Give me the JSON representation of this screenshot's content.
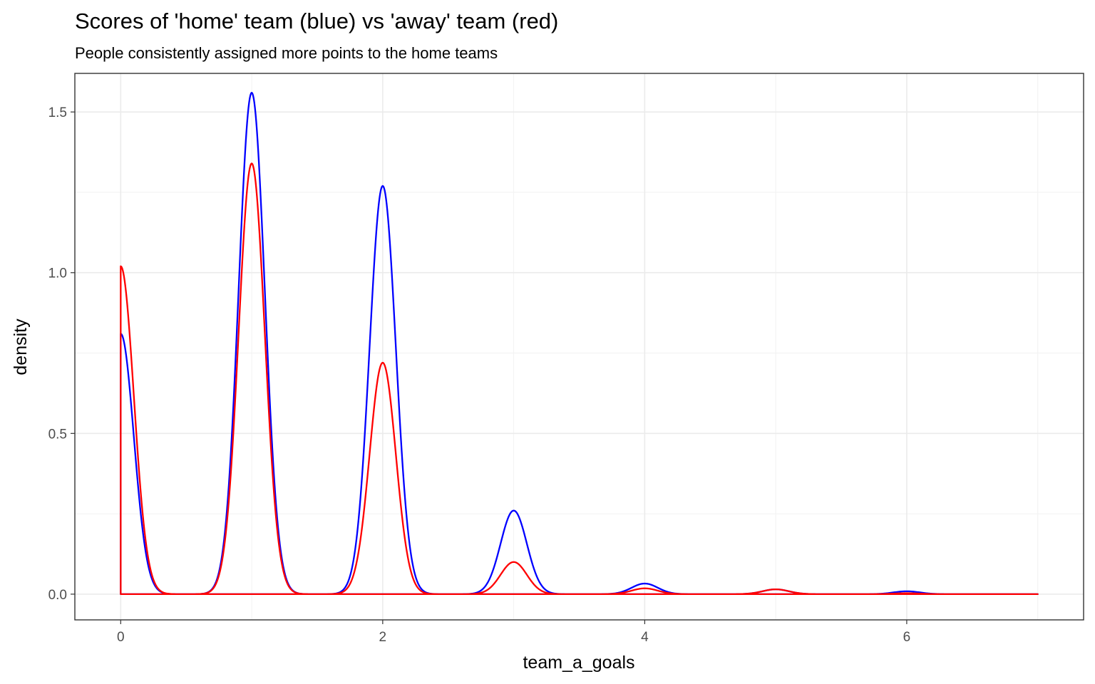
{
  "chart_data": {
    "type": "line",
    "title": "Scores of 'home' team (blue) vs 'away' team (red)",
    "subtitle": "People consistently assigned more points to the home teams",
    "xlabel": "team_a_goals",
    "ylabel": "density",
    "xlim": [
      -0.35,
      7.35
    ],
    "ylim": [
      -0.08,
      1.62
    ],
    "x_ticks": [
      0,
      2,
      4,
      6
    ],
    "x_tick_labels": [
      "0",
      "2",
      "4",
      "6"
    ],
    "y_ticks": [
      0.0,
      0.5,
      1.0,
      1.5
    ],
    "y_tick_labels": [
      "0.0",
      "0.5",
      "1.0",
      "1.5"
    ],
    "grid": true,
    "legend": "none",
    "x_range": [
      0,
      7
    ],
    "peak_width": 0.1,
    "series": [
      {
        "color": "#0000ff",
        "peaks": [
          {
            "x": 0,
            "density": 0.81
          },
          {
            "x": 1,
            "density": 1.56
          },
          {
            "x": 2,
            "density": 1.27
          },
          {
            "x": 3,
            "density": 0.26
          },
          {
            "x": 4,
            "density": 0.033
          },
          {
            "x": 5,
            "density": 0.015
          },
          {
            "x": 6,
            "density": 0.009
          }
        ]
      },
      {
        "color": "#ff0000",
        "peaks": [
          {
            "x": 0,
            "density": 1.02
          },
          {
            "x": 1,
            "density": 1.34
          },
          {
            "x": 2,
            "density": 0.72
          },
          {
            "x": 3,
            "density": 0.1
          },
          {
            "x": 4,
            "density": 0.018
          },
          {
            "x": 5,
            "density": 0.015
          },
          {
            "x": 6,
            "density": 0.003
          }
        ]
      }
    ]
  }
}
